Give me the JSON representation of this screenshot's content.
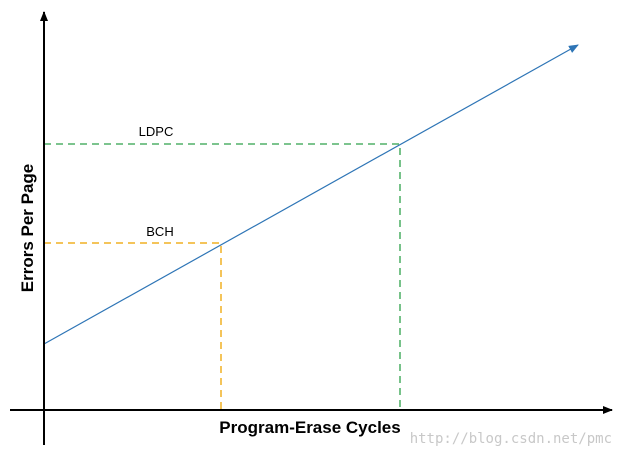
{
  "x_axis": {
    "label": "Program-Erase Cycles"
  },
  "y_axis": {
    "label": "Errors Per Page"
  },
  "markers": [
    {
      "label": "LDPC"
    },
    {
      "label": "BCH"
    }
  ],
  "watermark": "http://blog.csdn.net/pmc"
}
